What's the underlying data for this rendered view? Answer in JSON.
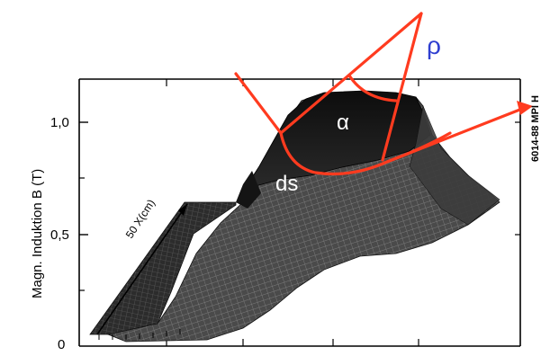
{
  "axis": {
    "ylabel": "Magn. Induktion  B (T)",
    "ticks": [
      "1,0",
      "0,5",
      "0"
    ],
    "xlabel": "50  X(cm)"
  },
  "figure_id": "6014-88 MPI H",
  "annotations": {
    "rho": "ρ",
    "alpha": "α",
    "ds": "ds"
  },
  "colors": {
    "overlay": "#ff3b1f",
    "rho": "#2f3fd0",
    "surface_dark": "#1a1a1a",
    "surface_mid": "#3a3a3a",
    "frame": "#000000"
  }
}
